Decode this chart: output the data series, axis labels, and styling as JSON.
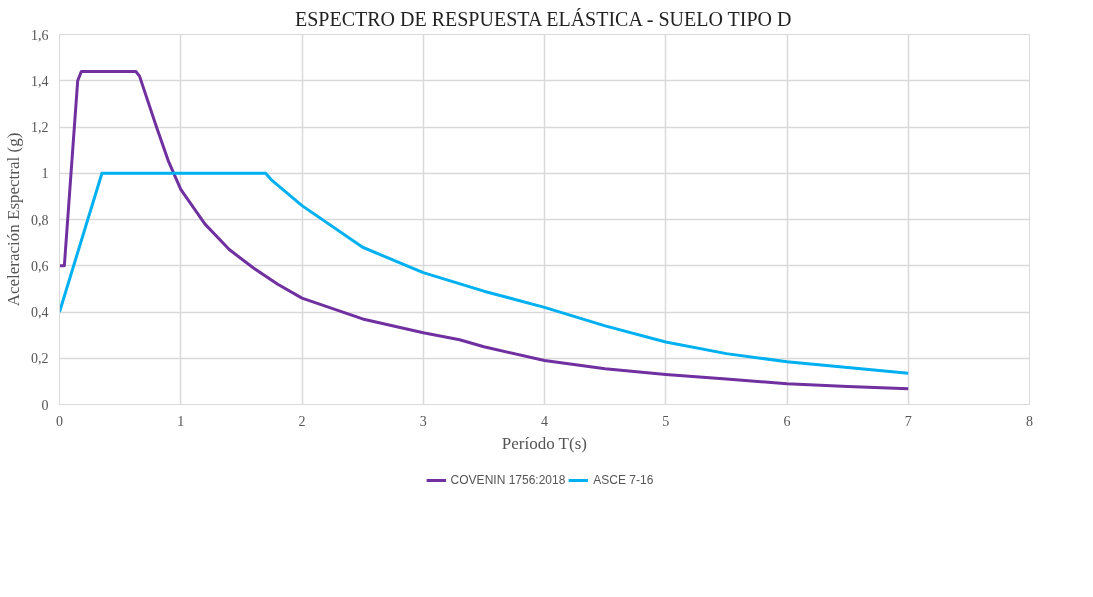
{
  "chart_data": {
    "type": "line",
    "title": "ESPECTRO DE RESPUESTA ELÁSTICA - SUELO TIPO D",
    "xlabel": "Período T(s)",
    "ylabel": "Aceleración Espectral (g)",
    "xlim": [
      0,
      8
    ],
    "xticks": [
      0,
      1,
      2,
      3,
      4,
      5,
      6,
      7,
      8
    ],
    "ylim": [
      0,
      1.6
    ],
    "yticks": [
      {
        "value": 0,
        "label": "0"
      },
      {
        "value": 0.2,
        "label": "0,2"
      },
      {
        "value": 0.4,
        "label": "0,4"
      },
      {
        "value": 0.6,
        "label": "0,6"
      },
      {
        "value": 0.8,
        "label": "0,8"
      },
      {
        "value": 1,
        "label": "1"
      },
      {
        "value": 1.2,
        "label": "1,2"
      },
      {
        "value": 1.4,
        "label": "1,4"
      },
      {
        "value": 1.6,
        "label": "1,6"
      }
    ],
    "grid": true,
    "legend": "bottom",
    "marker": "none",
    "line_style": "solid",
    "series": [
      {
        "name": "COVENIN 1756:2018",
        "color": "#7030a0",
        "x": [
          0,
          0.04,
          0.15,
          0.18,
          0.63,
          0.66,
          0.8,
          0.9,
          1,
          1.2,
          1.4,
          1.6,
          1.8,
          2,
          2.5,
          3,
          3.3,
          3.5,
          4,
          4.5,
          5,
          5.5,
          6,
          6.5,
          7
        ],
        "values": [
          0.6,
          0.6,
          1.4,
          1.44,
          1.44,
          1.42,
          1.2,
          1.05,
          0.93,
          0.78,
          0.67,
          0.59,
          0.52,
          0.46,
          0.37,
          0.31,
          0.28,
          0.25,
          0.19,
          0.155,
          0.13,
          0.11,
          0.09,
          0.078,
          0.068
        ]
      },
      {
        "name": "ASCE 7-16",
        "color": "#00b0f0",
        "x": [
          0,
          0.35,
          1.7,
          1.75,
          2,
          2.5,
          3,
          3.5,
          4,
          4.5,
          5,
          5.5,
          6,
          6.5,
          7
        ],
        "values": [
          0.4,
          1,
          1,
          0.97,
          0.86,
          0.68,
          0.57,
          0.49,
          0.42,
          0.34,
          0.27,
          0.22,
          0.185,
          0.16,
          0.135
        ]
      }
    ]
  }
}
